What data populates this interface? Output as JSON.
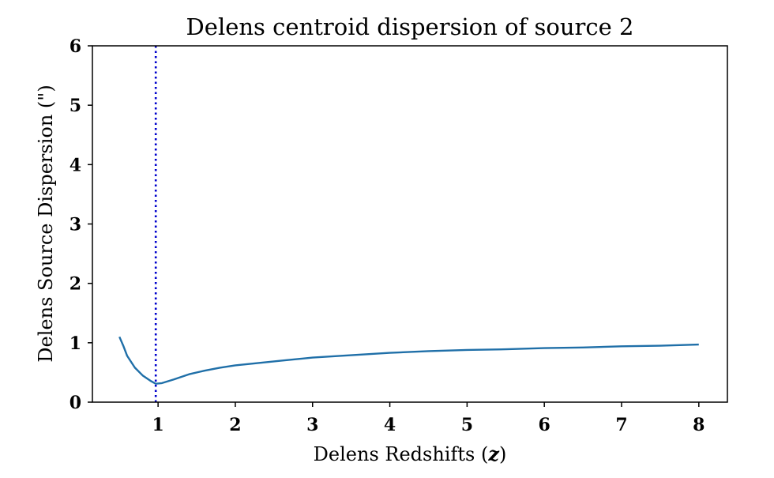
{
  "chart_data": {
    "type": "line",
    "title": "Delens centroid dispersion of source 2",
    "xlabel": "Delens Redshifts (",
    "xlabel_var": "z",
    "xlabel_close": ")",
    "ylabel": "Delens Source Dispersion (\")",
    "xlim": [
      0.15,
      8.37
    ],
    "ylim": [
      0,
      6
    ],
    "xticks": [
      1,
      2,
      3,
      4,
      5,
      6,
      7,
      8
    ],
    "yticks": [
      0,
      1,
      2,
      3,
      4,
      5,
      6
    ],
    "grid": false,
    "series": [
      {
        "color": "#1f6fa8",
        "x": [
          0.5,
          0.55,
          0.6,
          0.7,
          0.8,
          0.9,
          0.97,
          1.05,
          1.2,
          1.4,
          1.6,
          1.8,
          2.0,
          2.3,
          2.6,
          3.0,
          3.5,
          4.0,
          4.5,
          5.0,
          5.5,
          6.0,
          6.5,
          7.0,
          7.5,
          8.0
        ],
        "y": [
          1.1,
          0.95,
          0.78,
          0.58,
          0.45,
          0.36,
          0.31,
          0.32,
          0.38,
          0.47,
          0.53,
          0.58,
          0.62,
          0.66,
          0.7,
          0.75,
          0.79,
          0.83,
          0.86,
          0.88,
          0.89,
          0.91,
          0.92,
          0.94,
          0.95,
          0.97
        ]
      }
    ],
    "vline": {
      "x": 0.97,
      "color": "#0000cc",
      "style": "dotted"
    }
  }
}
